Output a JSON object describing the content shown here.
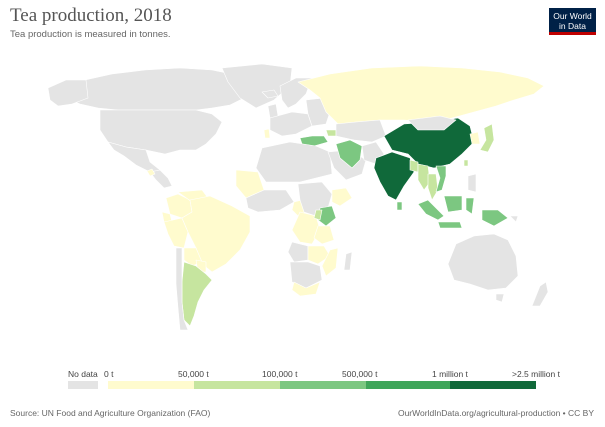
{
  "header": {
    "title": "Tea production, 2018",
    "subtitle": "Tea production is measured in tonnes."
  },
  "logo": {
    "line1": "Our World",
    "line2": "in Data"
  },
  "legend": {
    "no_data_label": "No data",
    "bins": [
      "0 t",
      "50,000 t",
      "100,000 t",
      "500,000 t",
      "1 million t",
      ">2.5 million t"
    ],
    "colors": [
      "#fffbce",
      "#c6e59f",
      "#7cc781",
      "#3fa55a",
      "#10693a"
    ],
    "no_data_color": "#e4e4e4"
  },
  "footer": {
    "source": "Source: UN Food and Agriculture Organization (FAO)",
    "link": "OurWorldInData.org/agricultural-production • CC BY"
  },
  "colors": {
    "no_data": "#e4e4e4",
    "bin_0_50k": "#fffbce",
    "bin_50k_100k": "#c6e59f",
    "bin_100k_500k": "#7cc781",
    "bin_500k_1m": "#3fa55a",
    "bin_over_1m": "#10693a"
  },
  "map_data": {
    "metric": "tonnes",
    "year": 2018,
    "countries": [
      {
        "name": "China",
        "bin": ">2.5 million t"
      },
      {
        "name": "India",
        "bin": "1 million t – 2.5 million t"
      },
      {
        "name": "Kenya",
        "bin": "100,000 t – 500,000 t"
      },
      {
        "name": "Sri Lanka",
        "bin": "100,000 t – 500,000 t"
      },
      {
        "name": "Vietnam",
        "bin": "100,000 t – 500,000 t"
      },
      {
        "name": "Turkey",
        "bin": "100,000 t – 500,000 t"
      },
      {
        "name": "Indonesia",
        "bin": "100,000 t – 500,000 t"
      },
      {
        "name": "Iran",
        "bin": "100,000 t – 500,000 t"
      },
      {
        "name": "Myanmar",
        "bin": "50,000 t – 100,000 t"
      },
      {
        "name": "Argentina",
        "bin": "50,000 t – 100,000 t"
      },
      {
        "name": "Japan",
        "bin": "50,000 t – 100,000 t"
      },
      {
        "name": "Thailand",
        "bin": "50,000 t – 100,000 t"
      },
      {
        "name": "Bangladesh",
        "bin": "50,000 t – 100,000 t"
      },
      {
        "name": "Uganda",
        "bin": "50,000 t – 100,000 t"
      },
      {
        "name": "Russia",
        "bin": "0 t – 50,000 t"
      },
      {
        "name": "Brazil",
        "bin": "0 t – 50,000 t"
      },
      {
        "name": "Tanzania",
        "bin": "0 t – 50,000 t"
      },
      {
        "name": "Malawi",
        "bin": "0 t – 50,000 t"
      }
    ]
  }
}
